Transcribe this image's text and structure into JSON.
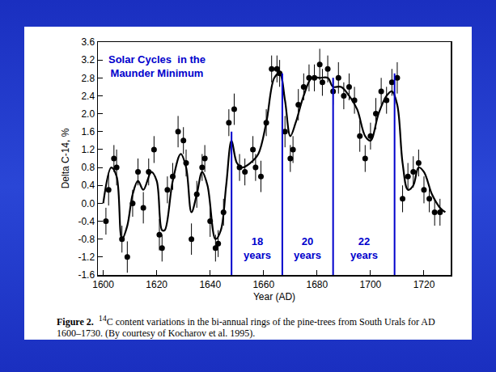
{
  "chart_data": {
    "type": "scatter",
    "xlabel": "Year (AD)",
    "ylabel": "Delta C-14, %",
    "xlim": [
      1598,
      1730
    ],
    "xticks": [
      1600,
      1620,
      1640,
      1660,
      1680,
      1700,
      1720
    ],
    "ylim": [
      -1.6,
      3.6
    ],
    "yticks": [
      -1.6,
      -1.2,
      -0.8,
      -0.4,
      {
        "value": 0,
        "label": "0.0"
      },
      0.4,
      0.8,
      1.2,
      1.6,
      {
        "value": 2,
        "label": "2.0"
      },
      2.4,
      2.8,
      3.2,
      3.6
    ],
    "grid": false,
    "series": [
      {
        "type": "scatter",
        "marker": "circle",
        "color": "#000000",
        "x": [
          1601,
          1602,
          1604,
          1605,
          1607,
          1609,
          1611,
          1613,
          1615,
          1617,
          1619,
          1621,
          1622,
          1624,
          1626,
          1628,
          1630,
          1631,
          1633,
          1635,
          1637,
          1638,
          1640,
          1642,
          1643,
          1645,
          1647,
          1649,
          1651,
          1653,
          1656,
          1657,
          1659,
          1661,
          1663,
          1665,
          1666,
          1668,
          1670,
          1671,
          1673,
          1675,
          1677,
          1679,
          1681,
          1682,
          1684,
          1686,
          1688,
          1690,
          1692,
          1694,
          1696,
          1698,
          1700,
          1702,
          1704,
          1706,
          1708,
          1710,
          1712,
          1714,
          1716,
          1718,
          1720,
          1722,
          1724,
          1726
        ],
        "values": [
          -0.4,
          0.3,
          1.0,
          0.8,
          -0.8,
          -1.2,
          0.0,
          0.7,
          -0.1,
          0.7,
          1.2,
          -0.7,
          -1.0,
          0.3,
          0.6,
          1.6,
          1.4,
          0.9,
          -0.8,
          0.2,
          0.8,
          1.0,
          -0.4,
          -1.0,
          -0.9,
          -0.2,
          1.8,
          2.1,
          0.8,
          0.7,
          1.2,
          0.8,
          0.6,
          1.8,
          3.0,
          3.0,
          2.9,
          1.6,
          1.0,
          1.2,
          2.2,
          2.6,
          2.8,
          2.8,
          3.1,
          2.7,
          3.0,
          2.5,
          2.8,
          2.4,
          2.6,
          2.3,
          1.5,
          1.0,
          1.5,
          2.0,
          2.5,
          2.3,
          2.7,
          2.8,
          0.1,
          0.6,
          0.7,
          0.9,
          0.3,
          0.1,
          -0.2,
          -0.2
        ],
        "errors": [
          0.3,
          0.35,
          0.3,
          0.4,
          0.3,
          0.35,
          0.3,
          0.3,
          0.35,
          0.3,
          0.3,
          0.35,
          0.3,
          0.3,
          0.3,
          0.35,
          0.3,
          0.3,
          0.35,
          0.3,
          0.3,
          0.3,
          0.35,
          0.3,
          0.3,
          0.3,
          0.3,
          0.35,
          0.3,
          0.3,
          0.3,
          0.3,
          0.35,
          0.3,
          0.3,
          0.3,
          0.3,
          0.35,
          0.3,
          0.3,
          0.35,
          0.3,
          0.3,
          0.3,
          0.35,
          0.3,
          0.3,
          0.3,
          0.35,
          0.3,
          0.3,
          0.3,
          0.35,
          0.3,
          0.3,
          0.35,
          0.3,
          0.3,
          0.3,
          0.35,
          0.3,
          0.3,
          0.35,
          0.3,
          0.3,
          0.3,
          0.3,
          0.3
        ]
      },
      {
        "type": "line",
        "line_style": "solid",
        "color": "#000000",
        "x": [
          1600,
          1603,
          1605,
          1607,
          1609,
          1611,
          1613,
          1615,
          1618,
          1620,
          1622,
          1623,
          1626,
          1629,
          1631,
          1633,
          1635,
          1637,
          1639,
          1642,
          1644,
          1646,
          1648,
          1650,
          1652,
          1655,
          1658,
          1661,
          1664,
          1666,
          1668,
          1670,
          1672,
          1675,
          1678,
          1681,
          1684,
          1686,
          1689,
          1692,
          1695,
          1698,
          1700,
          1703,
          1706,
          1708,
          1710,
          1712,
          1714,
          1716,
          1718,
          1720,
          1723,
          1726,
          1728
        ],
        "values": [
          0.0,
          0.8,
          0.6,
          -0.8,
          -0.5,
          0.2,
          0.5,
          0.3,
          0.7,
          0.5,
          -0.6,
          -0.6,
          0.5,
          1.1,
          0.8,
          -0.2,
          0.2,
          0.7,
          0.4,
          -0.8,
          -0.6,
          0.4,
          1.4,
          0.9,
          0.8,
          0.9,
          1.1,
          1.8,
          2.8,
          2.9,
          2.3,
          1.5,
          1.8,
          2.4,
          2.8,
          2.8,
          2.8,
          2.6,
          2.6,
          2.4,
          2.1,
          1.5,
          1.4,
          2.0,
          2.4,
          2.5,
          2.2,
          0.9,
          0.3,
          0.4,
          0.8,
          0.7,
          0.2,
          -0.1,
          -0.2
        ]
      }
    ],
    "cycle_lines": {
      "color": "#0000cc",
      "x": [
        1648,
        1667,
        1686,
        1709
      ],
      "tops": [
        1.6,
        2.9,
        2.8,
        2.9
      ]
    },
    "annotations": [
      {
        "lines": [
          "Solar Cycles  in the",
          "Maunder Minimum"
        ],
        "x": 1620,
        "y": 3.05,
        "color": "#0000cc"
      },
      {
        "lines": [
          "18",
          "years"
        ],
        "x": 1657.5,
        "y": -1.0,
        "color": "#0000cc"
      },
      {
        "lines": [
          "20",
          "years"
        ],
        "x": 1676.5,
        "y": -1.0,
        "color": "#0000cc"
      },
      {
        "lines": [
          "22",
          "years"
        ],
        "x": 1697.5,
        "y": -1.0,
        "color": "#0000cc"
      }
    ],
    "caption": {
      "label": "Figure 2.",
      "superscript": "14",
      "text": "C content variations in the bi-annual rings of the pine-trees from South Urals for AD 1600–1730. (By courtesy of Kocharov et al. 1995)."
    }
  }
}
